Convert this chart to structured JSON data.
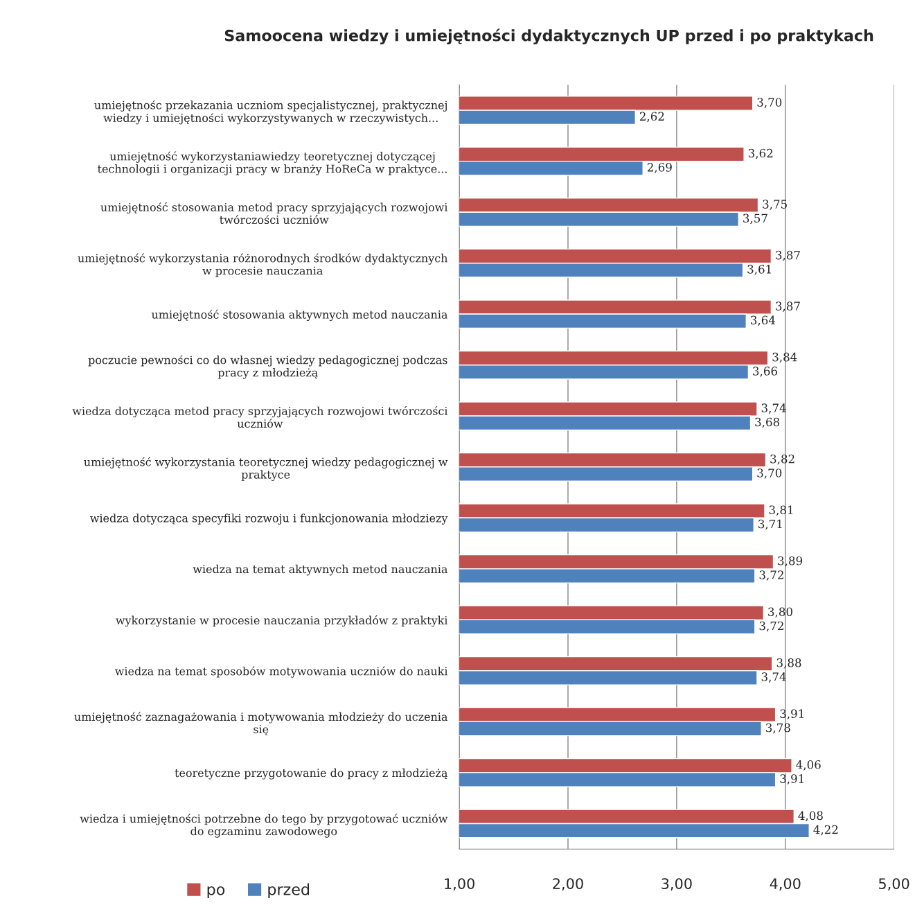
{
  "chart_data": {
    "type": "bar",
    "orientation": "horizontal",
    "title": "Samoocena wiedzy i umiejętności dydaktycznych UP przed i po praktykach",
    "categories": [
      "umiejętnośc przekazania uczniom specjalistycznej, praktycznej\nwiedzy i umiejętności wykorzystywanych w rzeczywistych...",
      "umiejętność wykorzystaniawiedzy teoretycznej dotyczącej\ntechnologii i organizacji pracy w branży HoReCa w praktyce...",
      "umiejętność stosowania metod pracy sprzyjających rozwojowi\ntwórczości uczniów",
      "umiejętność wykorzystania różnorodnych środków dydaktycznych\nw procesie nauczania",
      "umiejętność stosowania aktywnych metod nauczania",
      "poczucie pewności co do własnej wiedzy pedagogicznej podczas\npracy z młodzieżą",
      "wiedza dotycząca metod pracy sprzyjających rozwojowi twórczości\nuczniów",
      "umiejętność wykorzystania teoretycznej wiedzy pedagogicznej w\npraktyce",
      "wiedza dotycząca specyfiki rozwoju i funkcjonowania młodziezy",
      "wiedza na temat aktywnych metod nauczania",
      "wykorzystanie w procesie nauczania przykładów z praktyki",
      "wiedza na temat sposobów motywowania uczniów do nauki",
      "umiejętność zaznagażowania i motywowania młodzieży do uczenia\nsię",
      "teoretyczne przygotowanie do pracy z młodzieżą",
      "wiedza i umiejętności potrzebne do tego by przygotować uczniów\ndo egzaminu zawodowego"
    ],
    "series": [
      {
        "name": "po",
        "color": "#c0504d",
        "values": [
          3.7,
          3.62,
          3.75,
          3.87,
          3.87,
          3.84,
          3.74,
          3.82,
          3.81,
          3.89,
          3.8,
          3.88,
          3.91,
          4.06,
          4.08
        ],
        "value_labels": [
          "3,70",
          "3,62",
          "3,75",
          "3,87",
          "3,87",
          "3,84",
          "3,74",
          "3,82",
          "3,81",
          "3,89",
          "3,80",
          "3,88",
          "3,91",
          "4,06",
          "4,08"
        ]
      },
      {
        "name": "przed",
        "color": "#4f81bd",
        "values": [
          2.62,
          2.69,
          3.57,
          3.61,
          3.64,
          3.66,
          3.68,
          3.7,
          3.71,
          3.72,
          3.72,
          3.74,
          3.78,
          3.91,
          4.22
        ],
        "value_labels": [
          "2,62",
          "2,69",
          "3,57",
          "3,61",
          "3,64",
          "3,66",
          "3,68",
          "3,70",
          "3,71",
          "3,72",
          "3,72",
          "3,74",
          "3,78",
          "3,91",
          "4,22"
        ]
      }
    ],
    "xlim": [
      1,
      5
    ],
    "xticks": [
      {
        "value": 1,
        "label": "1,00"
      },
      {
        "value": 2,
        "label": "2,00"
      },
      {
        "value": 3,
        "label": "3,00"
      },
      {
        "value": 4,
        "label": "4,00"
      },
      {
        "value": 5,
        "label": "5,00"
      }
    ],
    "grid": "x",
    "legend": "bottom left"
  }
}
